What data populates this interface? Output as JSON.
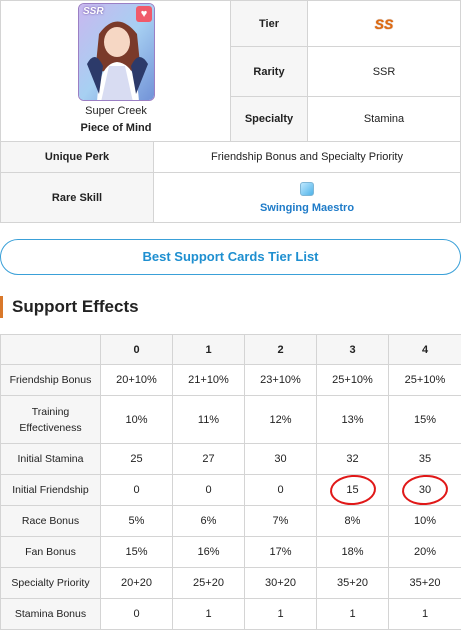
{
  "card": {
    "rarity_badge": "SSR",
    "name": "Super Creek",
    "title": "Piece of Mind"
  },
  "info_rows": {
    "tier_label": "Tier",
    "tier_value": "SS",
    "rarity_label": "Rarity",
    "rarity_value": "SSR",
    "specialty_label": "Specialty",
    "specialty_value": "Stamina",
    "perk_label": "Unique Perk",
    "perk_value": "Friendship Bonus and Specialty Priority",
    "rare_skill_label": "Rare Skill",
    "rare_skill_value": "Swinging Maestro"
  },
  "tier_list_button": "Best Support Cards Tier List",
  "section_title": "Support Effects",
  "effects": {
    "levels": [
      "0",
      "1",
      "2",
      "3",
      "4"
    ],
    "rows": [
      {
        "name": "Friendship Bonus",
        "values": [
          "20+10%",
          "21+10%",
          "23+10%",
          "25+10%",
          "25+10%"
        ]
      },
      {
        "name": "Training Effectiveness",
        "values": [
          "10%",
          "11%",
          "12%",
          "13%",
          "15%"
        ]
      },
      {
        "name": "Initial Stamina",
        "values": [
          "25",
          "27",
          "30",
          "32",
          "35"
        ]
      },
      {
        "name": "Initial Friendship",
        "values": [
          "0",
          "0",
          "0",
          "15",
          "30"
        ]
      },
      {
        "name": "Race Bonus",
        "values": [
          "5%",
          "6%",
          "7%",
          "8%",
          "10%"
        ]
      },
      {
        "name": "Fan Bonus",
        "values": [
          "15%",
          "16%",
          "17%",
          "18%",
          "20%"
        ]
      },
      {
        "name": "Specialty Priority",
        "values": [
          "20+20",
          "25+20",
          "30+20",
          "35+20",
          "35+20"
        ]
      },
      {
        "name": "Stamina Bonus",
        "values": [
          "0",
          "1",
          "1",
          "1",
          "1"
        ]
      }
    ]
  },
  "icons": {
    "favorite": "heart-icon",
    "skill": "skill-gem-icon"
  },
  "colors": {
    "accent": "#1e8fd0",
    "annotation": "#e01818",
    "section_bar": "#d9782a"
  }
}
